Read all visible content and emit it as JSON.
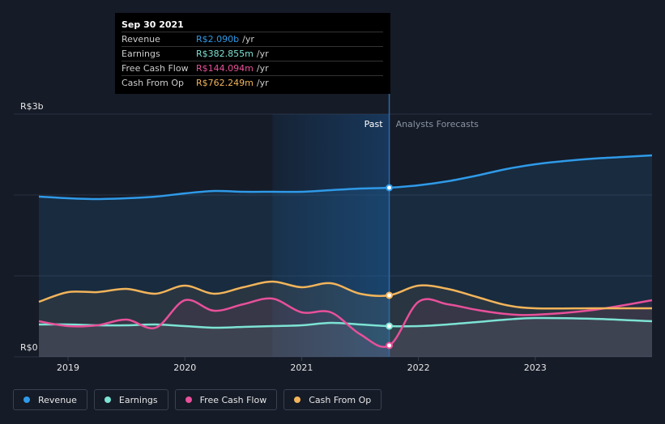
{
  "tooltip": {
    "date": "Sep 30 2021",
    "rows": [
      {
        "label": "Revenue",
        "value": "R$2.090b",
        "unit": "/yr",
        "color": "#2f9ae8"
      },
      {
        "label": "Earnings",
        "value": "R$382.855m",
        "unit": "/yr",
        "color": "#7de3d4"
      },
      {
        "label": "Free Cash Flow",
        "value": "R$144.094m",
        "unit": "/yr",
        "color": "#e8509a"
      },
      {
        "label": "Cash From Op",
        "value": "R$762.249m",
        "unit": "/yr",
        "color": "#f2b45a"
      }
    ]
  },
  "regions": {
    "past": "Past",
    "forecast": "Analysts Forecasts"
  },
  "legend": [
    {
      "label": "Revenue",
      "color": "#2f9ae8"
    },
    {
      "label": "Earnings",
      "color": "#7de3d4"
    },
    {
      "label": "Free Cash Flow",
      "color": "#e8509a"
    },
    {
      "label": "Cash From Op",
      "color": "#f2b45a"
    }
  ],
  "chart_data": {
    "type": "line",
    "ylim": [
      0,
      3
    ],
    "yunit": "R$ billions",
    "y_ticks": [
      {
        "value": 3,
        "label": "R$3b"
      },
      {
        "value": 0,
        "label": "R$0"
      }
    ],
    "xlim": [
      2018.75,
      2024.0
    ],
    "x_ticks": [
      {
        "value": 2019,
        "label": "2019"
      },
      {
        "value": 2020,
        "label": "2020"
      },
      {
        "value": 2021,
        "label": "2021"
      },
      {
        "value": 2022,
        "label": "2022"
      },
      {
        "value": 2023,
        "label": "2023"
      }
    ],
    "divider_x": 2021.75,
    "highlight_x": [
      2020.75,
      2021.75
    ],
    "grid": true,
    "series": [
      {
        "name": "Revenue",
        "color": "#2f9ae8",
        "points": [
          [
            2018.75,
            1.98
          ],
          [
            2019.0,
            1.96
          ],
          [
            2019.25,
            1.95
          ],
          [
            2019.5,
            1.96
          ],
          [
            2019.75,
            1.98
          ],
          [
            2020.0,
            2.02
          ],
          [
            2020.25,
            2.05
          ],
          [
            2020.5,
            2.04
          ],
          [
            2020.75,
            2.04
          ],
          [
            2021.0,
            2.04
          ],
          [
            2021.25,
            2.06
          ],
          [
            2021.5,
            2.08
          ],
          [
            2021.75,
            2.09
          ],
          [
            2022.0,
            2.12
          ],
          [
            2022.25,
            2.17
          ],
          [
            2022.5,
            2.24
          ],
          [
            2022.75,
            2.32
          ],
          [
            2023.0,
            2.38
          ],
          [
            2023.25,
            2.42
          ],
          [
            2023.5,
            2.45
          ],
          [
            2023.75,
            2.47
          ],
          [
            2024.0,
            2.49
          ]
        ]
      },
      {
        "name": "Earnings",
        "color": "#7de3d4",
        "points": [
          [
            2018.75,
            0.4
          ],
          [
            2019.0,
            0.4
          ],
          [
            2019.25,
            0.39
          ],
          [
            2019.5,
            0.39
          ],
          [
            2019.75,
            0.4
          ],
          [
            2020.0,
            0.38
          ],
          [
            2020.25,
            0.36
          ],
          [
            2020.5,
            0.37
          ],
          [
            2020.75,
            0.38
          ],
          [
            2021.0,
            0.39
          ],
          [
            2021.25,
            0.42
          ],
          [
            2021.5,
            0.4
          ],
          [
            2021.75,
            0.38
          ],
          [
            2022.0,
            0.38
          ],
          [
            2022.25,
            0.4
          ],
          [
            2022.5,
            0.43
          ],
          [
            2022.75,
            0.46
          ],
          [
            2023.0,
            0.48
          ],
          [
            2023.5,
            0.47
          ],
          [
            2024.0,
            0.44
          ]
        ]
      },
      {
        "name": "Free Cash Flow",
        "color": "#e8509a",
        "points": [
          [
            2018.75,
            0.44
          ],
          [
            2019.0,
            0.38
          ],
          [
            2019.25,
            0.39
          ],
          [
            2019.5,
            0.46
          ],
          [
            2019.75,
            0.36
          ],
          [
            2020.0,
            0.7
          ],
          [
            2020.25,
            0.57
          ],
          [
            2020.5,
            0.65
          ],
          [
            2020.75,
            0.72
          ],
          [
            2021.0,
            0.55
          ],
          [
            2021.25,
            0.55
          ],
          [
            2021.5,
            0.28
          ],
          [
            2021.75,
            0.14
          ],
          [
            2022.0,
            0.68
          ],
          [
            2022.25,
            0.65
          ],
          [
            2022.5,
            0.58
          ],
          [
            2022.75,
            0.53
          ],
          [
            2023.0,
            0.52
          ],
          [
            2023.5,
            0.58
          ],
          [
            2024.0,
            0.7
          ]
        ]
      },
      {
        "name": "Cash From Op",
        "color": "#f2b45a",
        "points": [
          [
            2018.75,
            0.68
          ],
          [
            2019.0,
            0.8
          ],
          [
            2019.25,
            0.8
          ],
          [
            2019.5,
            0.84
          ],
          [
            2019.75,
            0.78
          ],
          [
            2020.0,
            0.88
          ],
          [
            2020.25,
            0.78
          ],
          [
            2020.5,
            0.86
          ],
          [
            2020.75,
            0.93
          ],
          [
            2021.0,
            0.86
          ],
          [
            2021.25,
            0.91
          ],
          [
            2021.5,
            0.78
          ],
          [
            2021.75,
            0.76
          ],
          [
            2022.0,
            0.88
          ],
          [
            2022.25,
            0.84
          ],
          [
            2022.5,
            0.74
          ],
          [
            2022.75,
            0.64
          ],
          [
            2023.0,
            0.6
          ],
          [
            2023.5,
            0.6
          ],
          [
            2024.0,
            0.6
          ]
        ]
      }
    ]
  }
}
